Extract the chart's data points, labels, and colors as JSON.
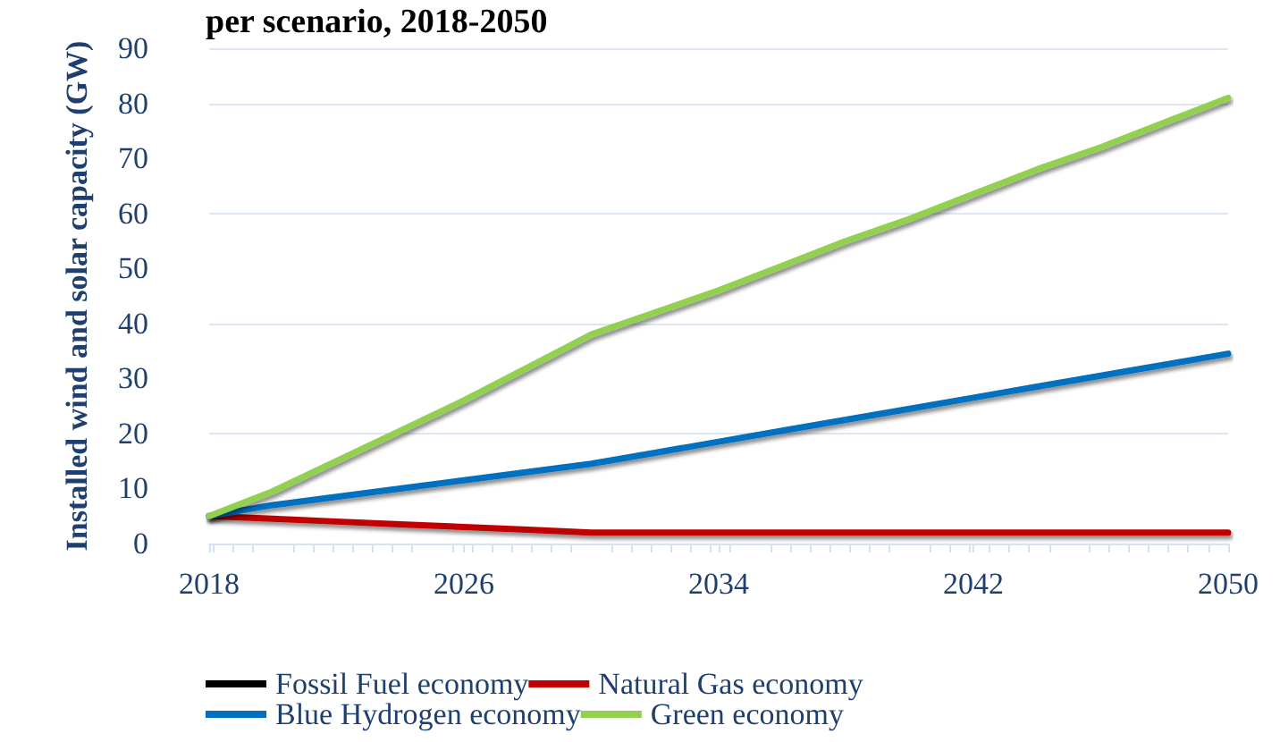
{
  "chart_data": {
    "type": "line",
    "title": "per scenario, 2018-2050",
    "ylabel": "Installed wind and solar capacity (GW)",
    "x": [
      2018,
      2020,
      2022,
      2024,
      2026,
      2028,
      2030,
      2032,
      2034,
      2036,
      2038,
      2040,
      2042,
      2044,
      2046,
      2048,
      2050
    ],
    "xlim": [
      2018,
      2050
    ],
    "xticks": [
      2018,
      2026,
      2034,
      2042,
      2050
    ],
    "ylim": [
      0,
      90
    ],
    "yticks": [
      0,
      10,
      20,
      30,
      40,
      50,
      60,
      70,
      80,
      90
    ],
    "grid": "y",
    "legend": "bottom",
    "marker": "none",
    "line_style": "solid",
    "series": [
      {
        "name": "Fossil Fuel economy",
        "color": "#000000",
        "values": [
          null,
          null,
          null,
          null,
          null,
          null,
          null,
          null,
          null,
          null,
          null,
          null,
          null,
          null,
          null,
          null,
          null
        ]
      },
      {
        "name": "Natural Gas economy",
        "color": "#c00000",
        "values": [
          5,
          4.5,
          4,
          3.5,
          3,
          2.5,
          2,
          2,
          2,
          2,
          2,
          2,
          2,
          2,
          2,
          2,
          2
        ]
      },
      {
        "name": "Blue Hydrogen economy",
        "color": "#0070c0",
        "values": [
          5,
          7,
          8.5,
          10,
          11.5,
          13,
          14.5,
          16.5,
          18.5,
          20.5,
          22.5,
          24.5,
          26.5,
          28.5,
          30.5,
          32.5,
          34.5
        ]
      },
      {
        "name": "Green economy",
        "color": "#92d050",
        "values": [
          5,
          9.5,
          15,
          20.5,
          26,
          32,
          38,
          42,
          46,
          50.5,
          55,
          59,
          63.5,
          68,
          72,
          76.5,
          81
        ]
      }
    ]
  }
}
